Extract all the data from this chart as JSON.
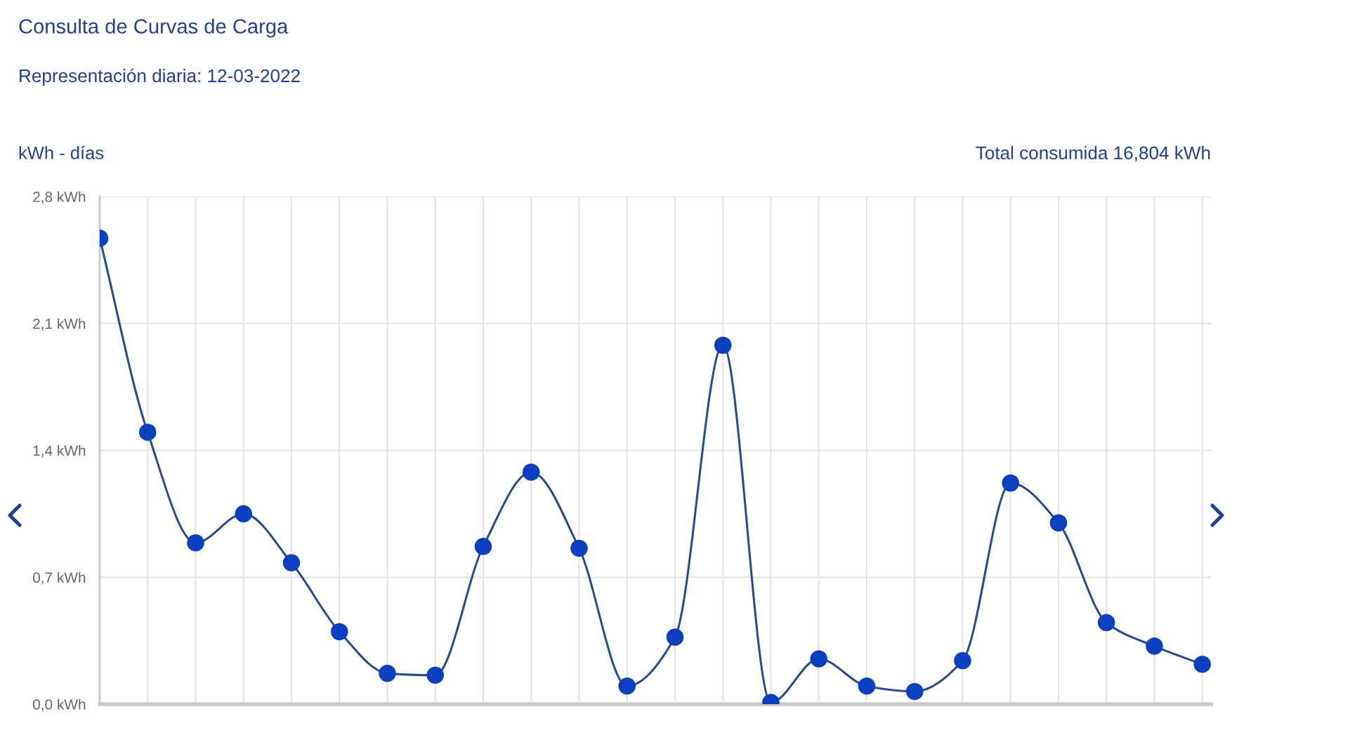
{
  "chart_data": {
    "type": "line",
    "title": "Consulta de Curvas de Carga",
    "subtitle": "Representación diaria: 12-03-2022",
    "ylabel": "kWh - días",
    "annotations": [
      "Total consumida 16,804 kWh"
    ],
    "categories": [
      null,
      null,
      null,
      null,
      null,
      null,
      null,
      null,
      null,
      null,
      null,
      null,
      null,
      null,
      null,
      null,
      null,
      null,
      null,
      null,
      null,
      null,
      null,
      null
    ],
    "series": [
      {
        "color": "#0b3fbf",
        "values": [
          2.57,
          1.5,
          0.89,
          1.05,
          0.78,
          0.4,
          0.17,
          0.16,
          0.87,
          1.28,
          0.86,
          0.1,
          0.37,
          1.98,
          0.01,
          0.25,
          0.1,
          0.07,
          0.24,
          1.22,
          1.0,
          0.45,
          0.32,
          0.22
        ]
      }
    ],
    "ylim": [
      0,
      2.8
    ],
    "yticks": [
      {
        "value": 0,
        "label": "0,0 kWh"
      },
      {
        "value": 0.7,
        "label": "0,7 kWh"
      },
      {
        "value": 1.4,
        "label": "1,4 kWh"
      },
      {
        "value": 2.1,
        "label": "2,1 kWh"
      },
      {
        "value": 2.8,
        "label": "2,8 kWh"
      }
    ],
    "tick_labels": "y",
    "grid": true,
    "marker": "circle",
    "line_style": "solid"
  }
}
